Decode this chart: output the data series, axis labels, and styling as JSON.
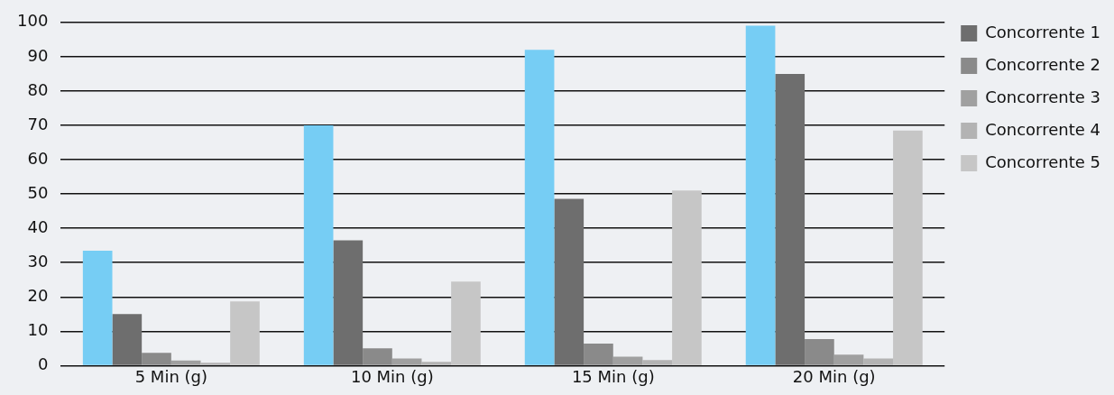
{
  "chart_data": {
    "type": "bar",
    "categories": [
      "5 Min (g)",
      "10 Min (g)",
      "15 Min (g)",
      "20 Min (g)"
    ],
    "series": [
      {
        "color": "#76cdf4",
        "values": [
          33.5,
          70,
          92,
          99
        ]
      },
      {
        "name": "Concorrente 1",
        "color": "#6e6e6e",
        "values": [
          15,
          36.5,
          48.6,
          85
        ]
      },
      {
        "name": "Concorrente 2",
        "color": "#8a8a8a",
        "values": [
          3.7,
          5,
          6.4,
          7.7
        ]
      },
      {
        "name": "Concorrente 3",
        "color": "#a0a0a0",
        "values": [
          1.5,
          2.1,
          2.6,
          3.2
        ]
      },
      {
        "name": "Concorrente 4",
        "color": "#b3b3b3",
        "values": [
          0.8,
          1.1,
          1.6,
          2.1
        ]
      },
      {
        "name": "Concorrente 5",
        "color": "#c6c6c6",
        "values": [
          18.7,
          24.5,
          51,
          68.5
        ]
      }
    ],
    "ylim": [
      0,
      100
    ],
    "yticks": [
      0,
      10,
      20,
      30,
      40,
      50,
      60,
      70,
      80,
      90,
      100
    ],
    "grid": "y",
    "legend": "right"
  }
}
